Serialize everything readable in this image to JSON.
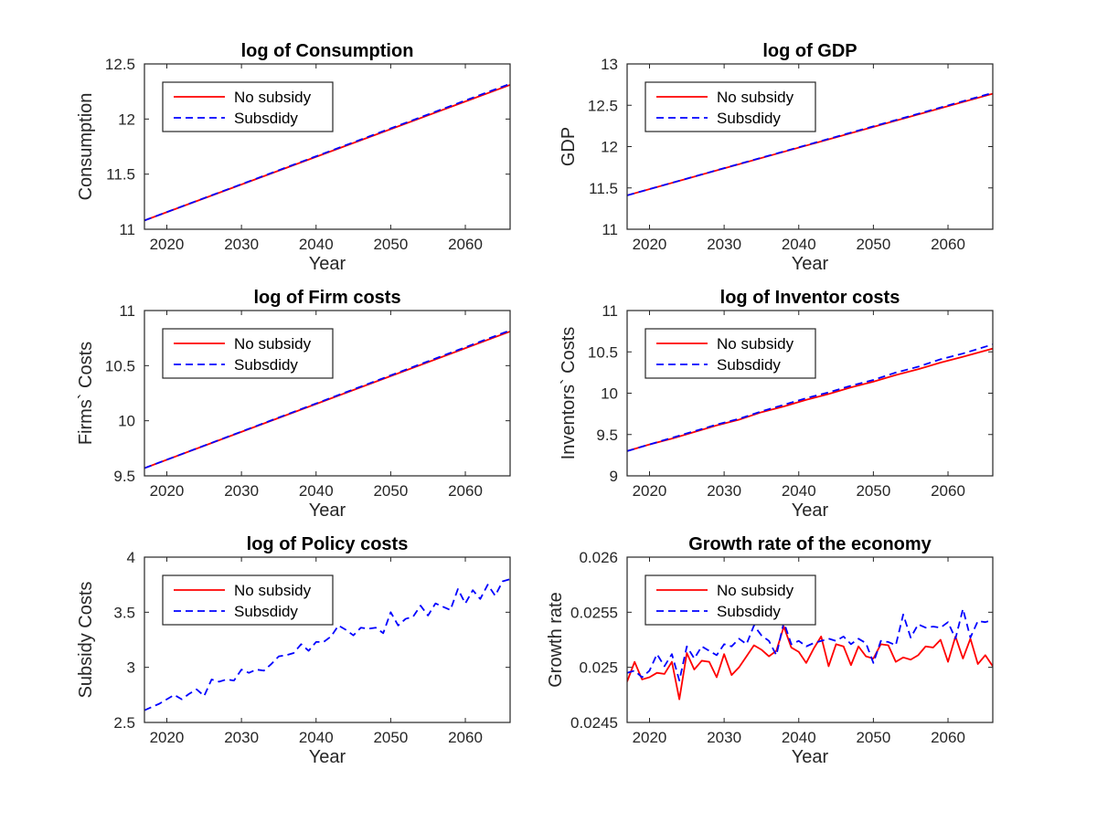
{
  "chart_data": [
    {
      "type": "line",
      "title": "log of Consumption",
      "xlabel": "Year",
      "ylabel": "Consumption",
      "xlim": [
        2017,
        2066
      ],
      "ylim": [
        11,
        12.5
      ],
      "xticks": [
        2020,
        2030,
        2040,
        2050,
        2060
      ],
      "yticks": [
        11,
        11.5,
        12,
        12.5
      ],
      "ytick_labels": [
        "11",
        "11.5",
        "12",
        "12.5"
      ],
      "legend_position": "top-left",
      "series": [
        {
          "name": "No subsidy",
          "color": "#ff0000",
          "style": "solid",
          "x": [
            2017,
            2066
          ],
          "y": [
            11.08,
            12.31
          ]
        },
        {
          "name": "Subsdidy",
          "color": "#0000ff",
          "style": "dashed",
          "x": [
            2017,
            2066
          ],
          "y": [
            11.08,
            12.32
          ]
        }
      ]
    },
    {
      "type": "line",
      "title": "log of GDP",
      "xlabel": "Year",
      "ylabel": "GDP",
      "xlim": [
        2017,
        2066
      ],
      "ylim": [
        11,
        13
      ],
      "xticks": [
        2020,
        2030,
        2040,
        2050,
        2060
      ],
      "yticks": [
        11,
        11.5,
        12,
        12.5,
        13
      ],
      "ytick_labels": [
        "11",
        "11.5",
        "12",
        "12.5",
        "13"
      ],
      "legend_position": "top-left",
      "series": [
        {
          "name": "No subsidy",
          "color": "#ff0000",
          "style": "solid",
          "x": [
            2017,
            2066
          ],
          "y": [
            11.41,
            12.64
          ]
        },
        {
          "name": "Subsdidy",
          "color": "#0000ff",
          "style": "dashed",
          "x": [
            2017,
            2066
          ],
          "y": [
            11.41,
            12.65
          ]
        }
      ]
    },
    {
      "type": "line",
      "title": "log of Firm costs",
      "xlabel": "Year",
      "ylabel": "Firms` Costs",
      "xlim": [
        2017,
        2066
      ],
      "ylim": [
        9.5,
        11
      ],
      "xticks": [
        2020,
        2030,
        2040,
        2050,
        2060
      ],
      "yticks": [
        9.5,
        10,
        10.5,
        11
      ],
      "ytick_labels": [
        "9.5",
        "10",
        "10.5",
        "11"
      ],
      "legend_position": "top-left",
      "series": [
        {
          "name": "No subsidy",
          "color": "#ff0000",
          "style": "solid",
          "x": [
            2017,
            2066
          ],
          "y": [
            9.57,
            10.81
          ]
        },
        {
          "name": "Subsdidy",
          "color": "#0000ff",
          "style": "dashed",
          "x": [
            2017,
            2066
          ],
          "y": [
            9.57,
            10.82
          ]
        }
      ]
    },
    {
      "type": "line",
      "title": "log of Inventor costs",
      "xlabel": "Year",
      "ylabel": "Inventors` Costs",
      "xlim": [
        2017,
        2066
      ],
      "ylim": [
        9,
        11
      ],
      "xticks": [
        2020,
        2030,
        2040,
        2050,
        2060
      ],
      "yticks": [
        9,
        9.5,
        10,
        10.5,
        11
      ],
      "ytick_labels": [
        "9",
        "9.5",
        "10",
        "10.5",
        "11"
      ],
      "legend_position": "top-left",
      "series": [
        {
          "name": "No subsidy",
          "color": "#ff0000",
          "style": "solid",
          "x": [
            2017,
            2020,
            2023,
            2026,
            2029,
            2032,
            2035,
            2038,
            2041,
            2044,
            2047,
            2050,
            2053,
            2056,
            2059,
            2062,
            2066
          ],
          "y": [
            9.3,
            9.38,
            9.45,
            9.53,
            9.61,
            9.68,
            9.77,
            9.84,
            9.92,
            9.99,
            10.07,
            10.14,
            10.22,
            10.29,
            10.37,
            10.44,
            10.54
          ]
        },
        {
          "name": "Subsdidy",
          "color": "#0000ff",
          "style": "dashed",
          "x": [
            2017,
            2020,
            2023,
            2026,
            2029,
            2032,
            2035,
            2038,
            2041,
            2044,
            2047,
            2050,
            2053,
            2056,
            2059,
            2062,
            2066
          ],
          "y": [
            9.3,
            9.38,
            9.46,
            9.54,
            9.62,
            9.69,
            9.78,
            9.86,
            9.94,
            10.01,
            10.09,
            10.16,
            10.25,
            10.32,
            10.41,
            10.48,
            10.59
          ]
        }
      ]
    },
    {
      "type": "line",
      "title": "log of Policy costs",
      "xlabel": "Year",
      "ylabel": "Subsidy Costs",
      "xlim": [
        2017,
        2066
      ],
      "ylim": [
        2.5,
        4
      ],
      "xticks": [
        2020,
        2030,
        2040,
        2050,
        2060
      ],
      "yticks": [
        2.5,
        3,
        3.5,
        4
      ],
      "ytick_labels": [
        "2.5",
        "3",
        "3.5",
        "4"
      ],
      "legend_position": "top-left",
      "series": [
        {
          "name": "No subsidy",
          "color": "#ff0000",
          "style": "solid",
          "x": [],
          "y": []
        },
        {
          "name": "Subsdidy",
          "color": "#0000ff",
          "style": "dashed",
          "x": [
            2017,
            2018,
            2019,
            2020,
            2021,
            2022,
            2023,
            2024,
            2025,
            2026,
            2027,
            2028,
            2029,
            2030,
            2031,
            2032,
            2033,
            2034,
            2035,
            2036,
            2037,
            2038,
            2039,
            2040,
            2041,
            2042,
            2043,
            2044,
            2045,
            2046,
            2047,
            2048,
            2049,
            2050,
            2051,
            2052,
            2053,
            2054,
            2055,
            2056,
            2057,
            2058,
            2059,
            2060,
            2061,
            2062,
            2063,
            2064,
            2065,
            2066
          ],
          "y": [
            2.61,
            2.64,
            2.67,
            2.71,
            2.75,
            2.71,
            2.76,
            2.8,
            2.74,
            2.89,
            2.87,
            2.89,
            2.88,
            2.98,
            2.95,
            2.98,
            2.97,
            3.03,
            3.1,
            3.11,
            3.13,
            3.21,
            3.15,
            3.23,
            3.23,
            3.28,
            3.38,
            3.34,
            3.29,
            3.36,
            3.35,
            3.36,
            3.31,
            3.5,
            3.38,
            3.44,
            3.46,
            3.56,
            3.47,
            3.58,
            3.55,
            3.52,
            3.71,
            3.58,
            3.7,
            3.62,
            3.75,
            3.65,
            3.78,
            3.8
          ]
        }
      ]
    },
    {
      "type": "line",
      "title": "Growth rate of the economy",
      "xlabel": "Year",
      "ylabel": "Growth rate",
      "xlim": [
        2017,
        2066
      ],
      "ylim": [
        0.0245,
        0.026
      ],
      "xticks": [
        2020,
        2030,
        2040,
        2050,
        2060
      ],
      "yticks": [
        0.0245,
        0.025,
        0.0255,
        0.026
      ],
      "ytick_labels": [
        "0.0245",
        "0.025",
        "0.0255",
        "0.026"
      ],
      "legend_position": "top-left",
      "series": [
        {
          "name": "No subsidy",
          "color": "#ff0000",
          "style": "solid",
          "x": [
            2017,
            2018,
            2019,
            2020,
            2021,
            2022,
            2023,
            2024,
            2025,
            2026,
            2027,
            2028,
            2029,
            2030,
            2031,
            2032,
            2033,
            2034,
            2035,
            2036,
            2037,
            2038,
            2039,
            2040,
            2041,
            2042,
            2043,
            2044,
            2045,
            2046,
            2047,
            2048,
            2049,
            2050,
            2051,
            2052,
            2053,
            2054,
            2055,
            2056,
            2057,
            2058,
            2059,
            2060,
            2061,
            2062,
            2063,
            2064,
            2065,
            2066
          ],
          "y": [
            0.02487,
            0.02505,
            0.02489,
            0.02491,
            0.02495,
            0.02494,
            0.02505,
            0.02471,
            0.02513,
            0.02498,
            0.02506,
            0.02505,
            0.02491,
            0.02512,
            0.02493,
            0.025,
            0.0251,
            0.0252,
            0.02516,
            0.0251,
            0.02515,
            0.02537,
            0.02518,
            0.02514,
            0.02504,
            0.02517,
            0.02528,
            0.02501,
            0.02521,
            0.02519,
            0.02502,
            0.02519,
            0.0251,
            0.02508,
            0.02521,
            0.0252,
            0.02505,
            0.02509,
            0.02507,
            0.02511,
            0.02519,
            0.02518,
            0.02525,
            0.02505,
            0.02528,
            0.02508,
            0.02526,
            0.02503,
            0.02511,
            0.02501
          ]
        },
        {
          "name": "Subsdidy",
          "color": "#0000ff",
          "style": "dashed",
          "x": [
            2017,
            2018,
            2019,
            2020,
            2021,
            2022,
            2023,
            2024,
            2025,
            2026,
            2027,
            2028,
            2029,
            2030,
            2031,
            2032,
            2033,
            2034,
            2035,
            2036,
            2037,
            2038,
            2039,
            2040,
            2041,
            2042,
            2043,
            2044,
            2045,
            2046,
            2047,
            2048,
            2049,
            2050,
            2051,
            2052,
            2053,
            2054,
            2055,
            2056,
            2057,
            2058,
            2059,
            2060,
            2061,
            2062,
            2063,
            2064,
            2065,
            2066
          ],
          "y": [
            0.02495,
            0.02497,
            0.02491,
            0.02497,
            0.02512,
            0.02501,
            0.02512,
            0.02488,
            0.02519,
            0.02508,
            0.02519,
            0.02515,
            0.02511,
            0.02521,
            0.02519,
            0.02526,
            0.02521,
            0.02538,
            0.02529,
            0.02524,
            0.02511,
            0.02541,
            0.02521,
            0.02524,
            0.02519,
            0.02522,
            0.02524,
            0.02526,
            0.02524,
            0.02528,
            0.02521,
            0.02526,
            0.02522,
            0.02504,
            0.02524,
            0.02523,
            0.0252,
            0.02548,
            0.02527,
            0.02539,
            0.02536,
            0.02537,
            0.02536,
            0.02541,
            0.02526,
            0.02553,
            0.02527,
            0.02542,
            0.02541,
            0.02543
          ]
        }
      ]
    }
  ]
}
